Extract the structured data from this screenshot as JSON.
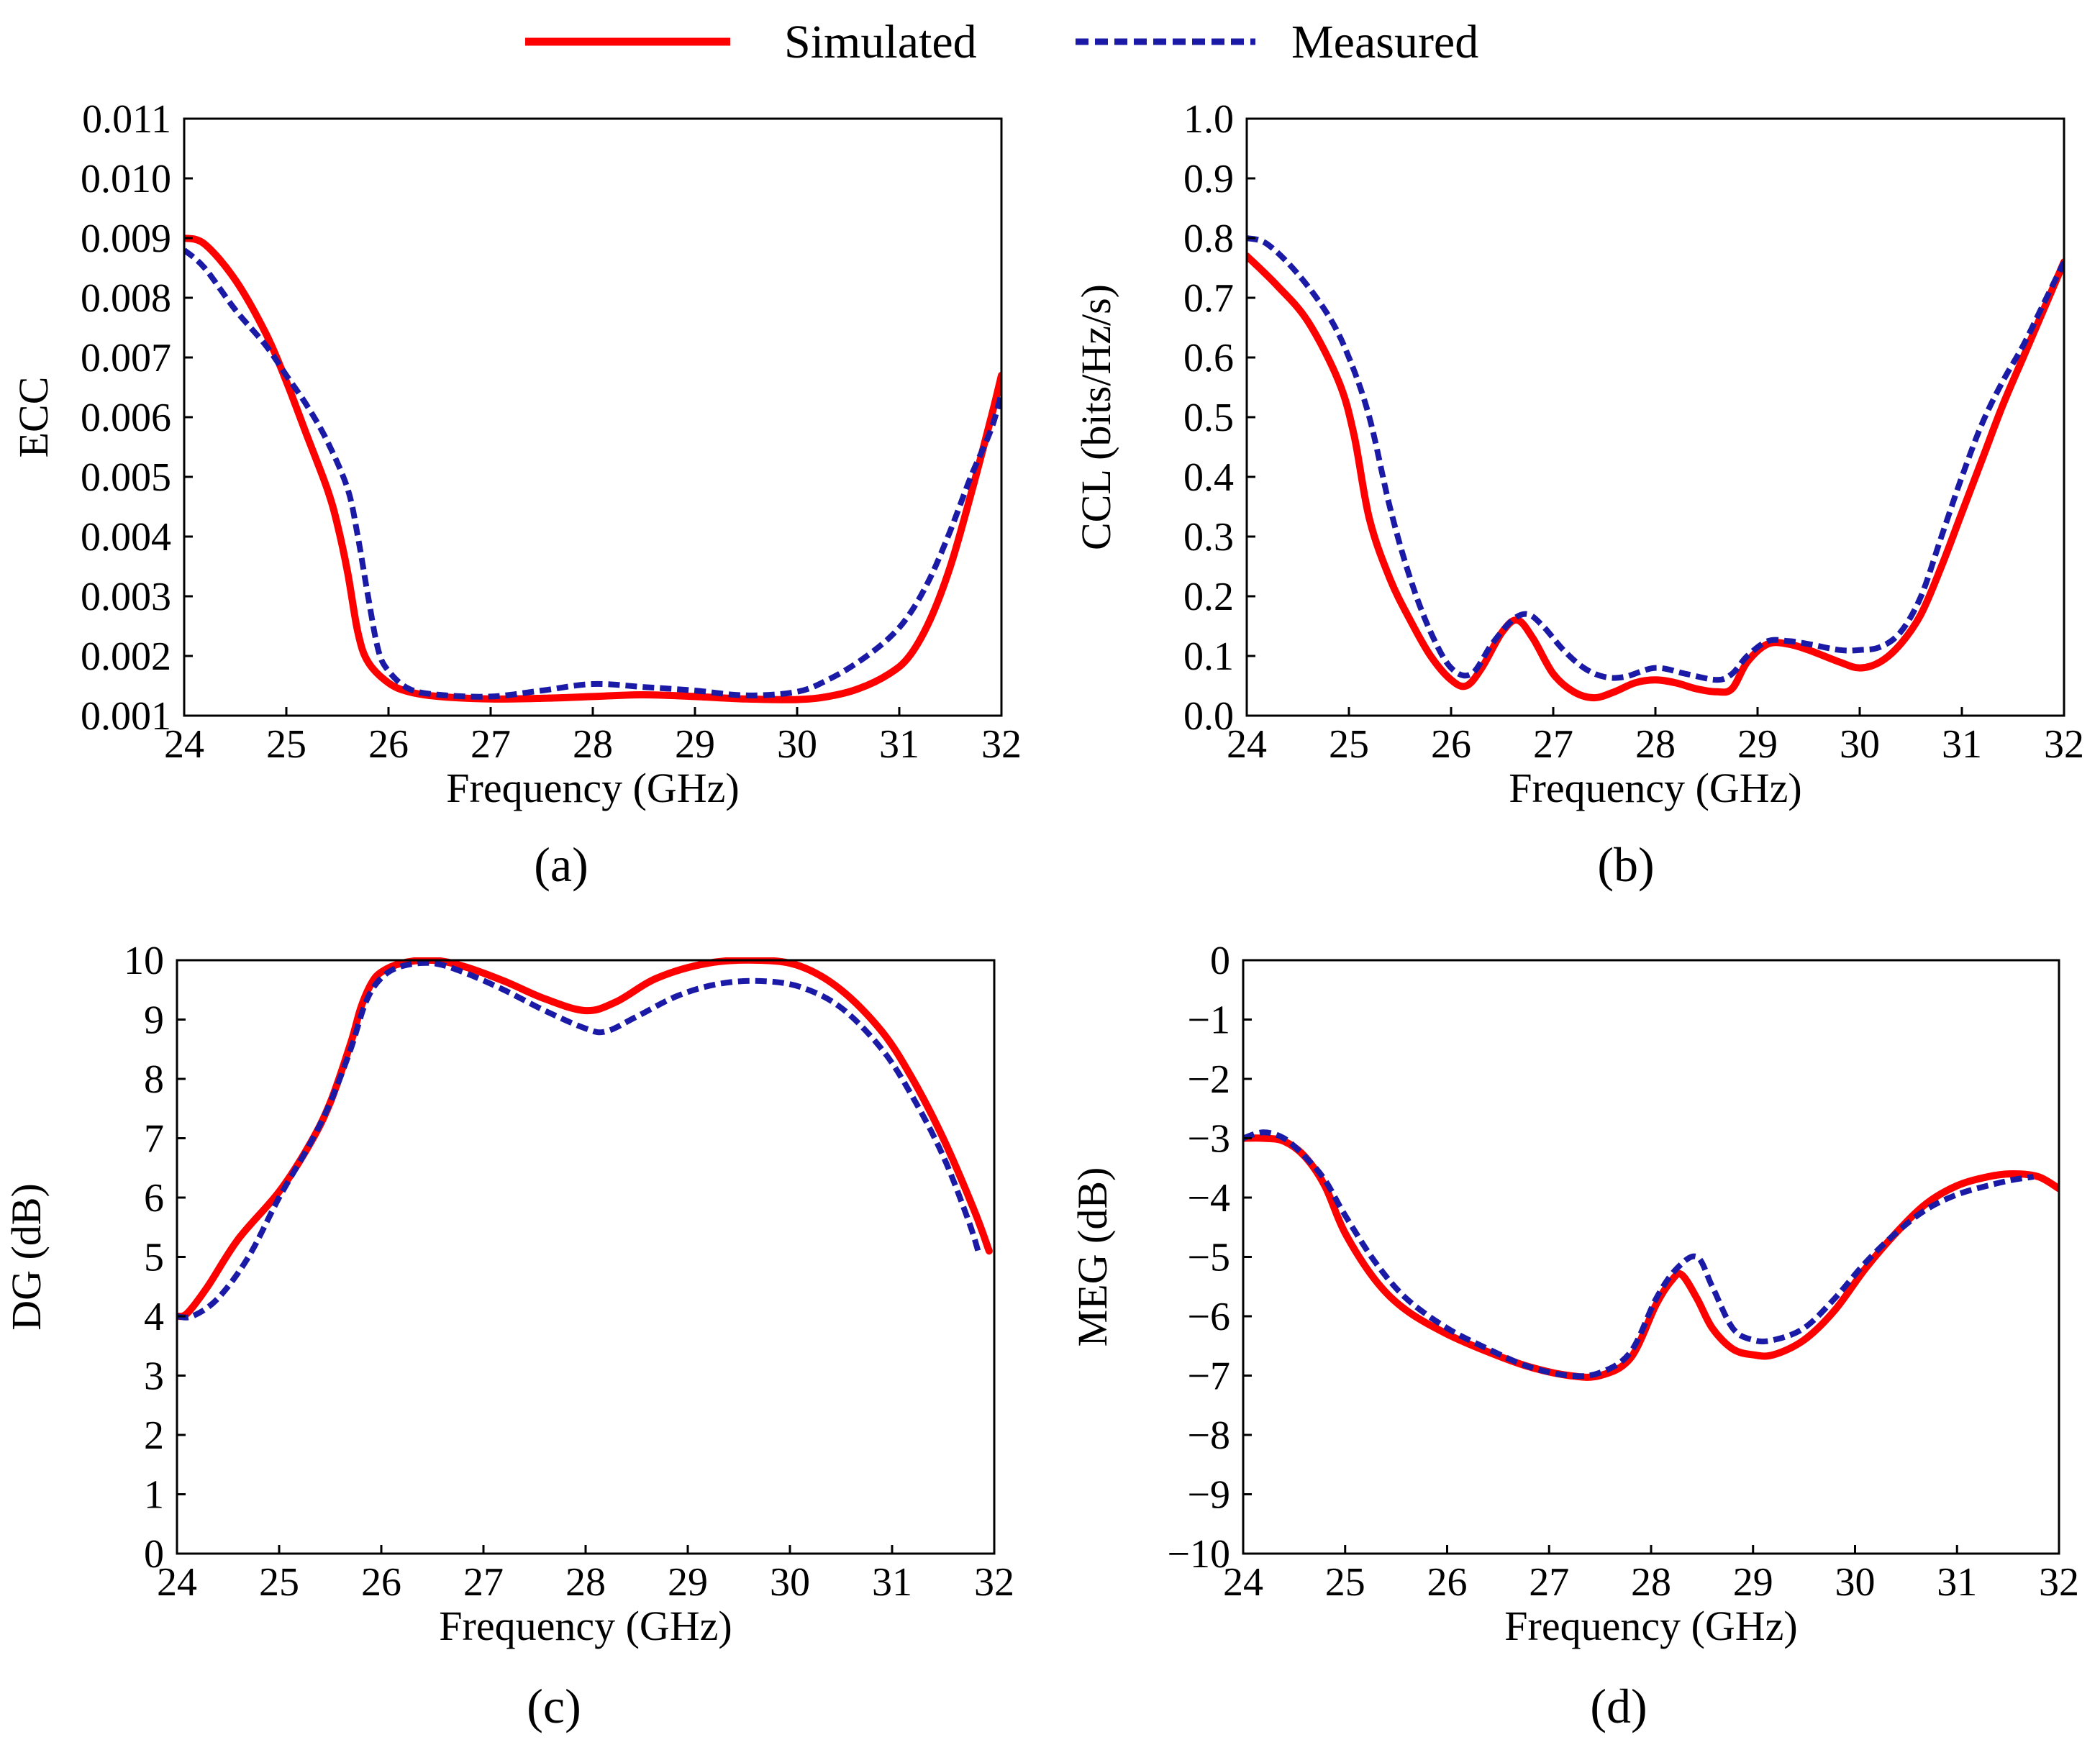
{
  "legend": {
    "simulated_label": "Simulated",
    "measured_label": "Measured",
    "simulated_color": "#ff0000",
    "measured_color": "#1a1aa6"
  },
  "chart_data": [
    {
      "type": "line",
      "panel_label": "(a)",
      "xlabel": "Frequency (GHz)",
      "ylabel": "ECC",
      "xlim": [
        24,
        32
      ],
      "ylim": [
        0.001,
        0.011
      ],
      "xticks": [
        24,
        25,
        26,
        27,
        28,
        29,
        30,
        31,
        32
      ],
      "xtick_labels": [
        "24",
        "25",
        "26",
        "27",
        "28",
        "29",
        "30",
        "31",
        "32"
      ],
      "yticks": [
        0.001,
        0.002,
        0.003,
        0.004,
        0.005,
        0.006,
        0.007,
        0.008,
        0.009,
        0.01,
        0.011
      ],
      "ytick_labels": [
        "0.001",
        "0.002",
        "0.003",
        "0.004",
        "0.005",
        "0.006",
        "0.007",
        "0.008",
        "0.009",
        "0.010",
        "0.011"
      ],
      "series": [
        {
          "name": "Simulated",
          "x": [
            24,
            24.2,
            24.5,
            24.8,
            25,
            25.2,
            25.4,
            25.5,
            25.6,
            25.7,
            25.8,
            26,
            26.2,
            26.5,
            27,
            27.5,
            28,
            28.5,
            29,
            29.5,
            30,
            30.3,
            30.6,
            30.9,
            31.1,
            31.3,
            31.5,
            31.7,
            31.9,
            32
          ],
          "y": [
            0.009,
            0.0089,
            0.0083,
            0.0074,
            0.0066,
            0.0057,
            0.0048,
            0.0042,
            0.0034,
            0.0024,
            0.0019,
            0.00155,
            0.0014,
            0.00132,
            0.00128,
            0.00129,
            0.00132,
            0.00135,
            0.00132,
            0.00128,
            0.00127,
            0.00132,
            0.00145,
            0.0017,
            0.002,
            0.0026,
            0.0035,
            0.0047,
            0.006,
            0.0067
          ]
        },
        {
          "name": "Measured",
          "x": [
            24,
            24.2,
            24.5,
            24.8,
            25,
            25.2,
            25.4,
            25.6,
            25.7,
            25.8,
            25.9,
            26,
            26.2,
            26.5,
            27,
            27.5,
            28,
            28.5,
            29,
            29.5,
            30,
            30.3,
            30.6,
            30.9,
            31.1,
            31.3,
            31.5,
            31.7,
            31.9,
            32
          ],
          "y": [
            0.0088,
            0.0085,
            0.0078,
            0.0072,
            0.0067,
            0.0062,
            0.0056,
            0.0048,
            0.004,
            0.003,
            0.0021,
            0.00175,
            0.00145,
            0.00135,
            0.00132,
            0.00142,
            0.00153,
            0.00148,
            0.00142,
            0.00134,
            0.0014,
            0.0016,
            0.0019,
            0.0023,
            0.0027,
            0.0033,
            0.0041,
            0.005,
            0.0058,
            0.0064
          ]
        }
      ]
    },
    {
      "type": "line",
      "panel_label": "(b)",
      "xlabel": "Frequency (GHz)",
      "ylabel": "CCL (bits/Hz/s)",
      "xlim": [
        24,
        32
      ],
      "ylim": [
        0,
        1.0
      ],
      "xticks": [
        24,
        25,
        26,
        27,
        28,
        29,
        30,
        31,
        32
      ],
      "xtick_labels": [
        "24",
        "25",
        "26",
        "27",
        "28",
        "29",
        "30",
        "31",
        "32"
      ],
      "yticks": [
        0,
        0.1,
        0.2,
        0.3,
        0.4,
        0.5,
        0.6,
        0.7,
        0.8,
        0.9,
        1.0
      ],
      "ytick_labels": [
        "0.0",
        "0.1",
        "0.2",
        "0.3",
        "0.4",
        "0.5",
        "0.6",
        "0.7",
        "0.8",
        "0.9",
        "1.0"
      ],
      "series": [
        {
          "name": "Simulated",
          "x": [
            24,
            24.3,
            24.6,
            24.9,
            25.05,
            25.2,
            25.4,
            25.6,
            25.8,
            26,
            26.15,
            26.3,
            26.5,
            26.65,
            26.8,
            27,
            27.2,
            27.4,
            27.6,
            27.8,
            28,
            28.2,
            28.4,
            28.6,
            28.75,
            28.9,
            29.1,
            29.3,
            29.5,
            29.8,
            30,
            30.2,
            30.4,
            30.6,
            30.8,
            31,
            31.2,
            31.4,
            31.6,
            31.8,
            32
          ],
          "y": [
            0.77,
            0.72,
            0.66,
            0.56,
            0.47,
            0.33,
            0.23,
            0.16,
            0.1,
            0.06,
            0.05,
            0.08,
            0.14,
            0.16,
            0.13,
            0.07,
            0.04,
            0.03,
            0.04,
            0.055,
            0.06,
            0.055,
            0.045,
            0.04,
            0.045,
            0.09,
            0.12,
            0.12,
            0.11,
            0.09,
            0.08,
            0.09,
            0.12,
            0.17,
            0.25,
            0.34,
            0.43,
            0.52,
            0.6,
            0.68,
            0.76
          ]
        },
        {
          "name": "Measured",
          "x": [
            24,
            24.2,
            24.5,
            24.8,
            25,
            25.2,
            25.4,
            25.6,
            25.8,
            26,
            26.2,
            26.4,
            26.6,
            26.75,
            26.9,
            27.1,
            27.3,
            27.5,
            27.7,
            28,
            28.3,
            28.6,
            28.75,
            28.9,
            29.1,
            29.3,
            29.5,
            29.8,
            30,
            30.2,
            30.4,
            30.6,
            30.8,
            31,
            31.2,
            31.4,
            31.6,
            31.8,
            32
          ],
          "y": [
            0.8,
            0.79,
            0.74,
            0.67,
            0.6,
            0.5,
            0.35,
            0.23,
            0.14,
            0.08,
            0.07,
            0.12,
            0.16,
            0.17,
            0.15,
            0.11,
            0.08,
            0.065,
            0.065,
            0.08,
            0.07,
            0.06,
            0.07,
            0.1,
            0.125,
            0.125,
            0.12,
            0.11,
            0.11,
            0.115,
            0.14,
            0.2,
            0.3,
            0.4,
            0.49,
            0.56,
            0.62,
            0.69,
            0.76
          ]
        }
      ]
    },
    {
      "type": "line",
      "panel_label": "(c)",
      "xlabel": "Frequency (GHz)",
      "ylabel": "DG (dB)",
      "xlim": [
        24,
        32
      ],
      "ylim": [
        0,
        10
      ],
      "xticks": [
        24,
        25,
        26,
        27,
        28,
        29,
        30,
        31,
        32
      ],
      "xtick_labels": [
        "24",
        "25",
        "26",
        "27",
        "28",
        "29",
        "30",
        "31",
        "32"
      ],
      "yticks": [
        0,
        1,
        2,
        3,
        4,
        5,
        6,
        7,
        8,
        9,
        10
      ],
      "ytick_labels": [
        "0",
        "1",
        "2",
        "3",
        "4",
        "5",
        "6",
        "7",
        "8",
        "9",
        "10"
      ],
      "series": [
        {
          "name": "Simulated",
          "x": [
            24,
            24.1,
            24.3,
            24.6,
            25,
            25.3,
            25.5,
            25.7,
            25.8,
            25.9,
            26,
            26.2,
            26.5,
            26.8,
            27.2,
            27.6,
            28,
            28.3,
            28.7,
            29.2,
            29.7,
            30.1,
            30.5,
            30.9,
            31.2,
            31.5,
            31.8,
            31.95
          ],
          "y": [
            4.0,
            4.05,
            4.5,
            5.3,
            6.1,
            6.9,
            7.6,
            8.6,
            9.2,
            9.6,
            9.8,
            9.95,
            10.0,
            9.9,
            9.65,
            9.35,
            9.15,
            9.3,
            9.7,
            9.95,
            10.0,
            9.9,
            9.5,
            8.8,
            8.0,
            7.0,
            5.8,
            5.1
          ]
        },
        {
          "name": "Measured",
          "x": [
            24,
            24.15,
            24.4,
            24.7,
            25,
            25.3,
            25.5,
            25.7,
            25.85,
            26,
            26.2,
            26.5,
            26.8,
            27.2,
            27.6,
            28,
            28.2,
            28.5,
            28.9,
            29.3,
            29.7,
            30.1,
            30.5,
            30.9,
            31.2,
            31.5,
            31.75,
            31.85
          ],
          "y": [
            4.0,
            4.0,
            4.3,
            5.0,
            6.0,
            6.9,
            7.6,
            8.5,
            9.3,
            9.7,
            9.9,
            9.95,
            9.8,
            9.5,
            9.15,
            8.85,
            8.8,
            9.05,
            9.4,
            9.6,
            9.65,
            9.55,
            9.2,
            8.5,
            7.7,
            6.7,
            5.6,
            5.05
          ]
        }
      ]
    },
    {
      "type": "line",
      "panel_label": "(d)",
      "xlabel": "Frequency (GHz)",
      "ylabel": "MEG (dB)",
      "xlim": [
        24,
        32
      ],
      "ylim": [
        -10,
        0
      ],
      "xticks": [
        24,
        25,
        26,
        27,
        28,
        29,
        30,
        31,
        32
      ],
      "xtick_labels": [
        "24",
        "25",
        "26",
        "27",
        "28",
        "29",
        "30",
        "31",
        "32"
      ],
      "yticks": [
        0,
        -1,
        -2,
        -3,
        -4,
        -5,
        -6,
        -7,
        -8,
        -9,
        -10
      ],
      "ytick_labels": [
        "0",
        "−1",
        "−2",
        "−3",
        "−4",
        "−5",
        "−6",
        "−7",
        "−8",
        "−9",
        "−10"
      ],
      "series": [
        {
          "name": "Simulated",
          "x": [
            24,
            24.2,
            24.4,
            24.6,
            24.8,
            25,
            25.3,
            25.6,
            26,
            26.4,
            26.8,
            27.2,
            27.5,
            27.8,
            28.05,
            28.2,
            28.3,
            28.45,
            28.6,
            28.8,
            29,
            29.2,
            29.5,
            29.8,
            30.1,
            30.4,
            30.7,
            31,
            31.3,
            31.55,
            31.8,
            32
          ],
          "y": [
            -3.0,
            -3.0,
            -3.05,
            -3.3,
            -3.8,
            -4.6,
            -5.4,
            -5.9,
            -6.3,
            -6.6,
            -6.85,
            -7.0,
            -7.0,
            -6.7,
            -5.8,
            -5.4,
            -5.3,
            -5.7,
            -6.2,
            -6.55,
            -6.65,
            -6.65,
            -6.4,
            -5.9,
            -5.2,
            -4.6,
            -4.1,
            -3.8,
            -3.65,
            -3.6,
            -3.65,
            -3.85
          ]
        },
        {
          "name": "Measured",
          "x": [
            24,
            24.2,
            24.4,
            24.6,
            24.8,
            25,
            25.3,
            25.6,
            26,
            26.4,
            26.8,
            27.2,
            27.5,
            27.8,
            28.05,
            28.25,
            28.45,
            28.6,
            28.8,
            29,
            29.2,
            29.5,
            29.8,
            30.1,
            30.4,
            30.7,
            31,
            31.3,
            31.55,
            31.75
          ],
          "y": [
            -3.0,
            -2.9,
            -3.0,
            -3.3,
            -3.7,
            -4.3,
            -5.1,
            -5.7,
            -6.2,
            -6.55,
            -6.85,
            -7.0,
            -6.95,
            -6.6,
            -5.7,
            -5.2,
            -5.0,
            -5.5,
            -6.2,
            -6.4,
            -6.4,
            -6.2,
            -5.7,
            -5.1,
            -4.6,
            -4.2,
            -3.95,
            -3.8,
            -3.7,
            -3.65
          ]
        }
      ]
    }
  ]
}
